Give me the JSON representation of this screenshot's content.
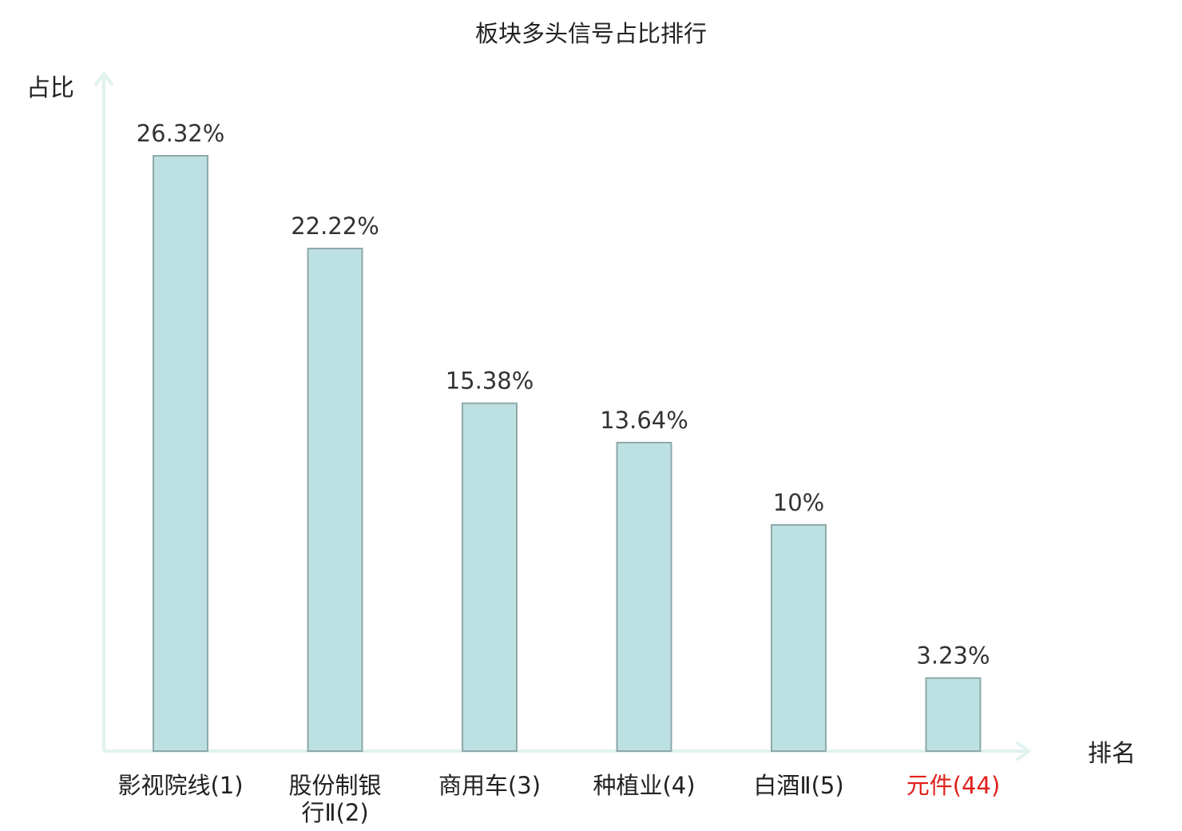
{
  "chart_data": {
    "type": "bar",
    "title": "板块多头信号占比排行",
    "ylabel": "占比",
    "xlabel": "排名",
    "ylim": [
      0,
      30
    ],
    "grid": false,
    "categories": [
      [
        "影视院线(1)"
      ],
      [
        "股份制银",
        "行Ⅱ(2)"
      ],
      [
        "商用车(3)"
      ],
      [
        "种植业(4)"
      ],
      [
        "白酒Ⅱ(5)"
      ],
      [
        "元件(44)"
      ]
    ],
    "values": [
      26.32,
      22.22,
      15.38,
      13.64,
      10,
      3.23
    ],
    "value_labels": [
      "26.32%",
      "22.22%",
      "15.38%",
      "13.64%",
      "10%",
      "3.23%"
    ],
    "highlight_index": 5,
    "colors": {
      "bar_fill": "#bde0e3",
      "bar_stroke": "#8fa9a9",
      "axis": "#e0f2ef",
      "text": "#222222",
      "value_text": "#333333",
      "highlight": "#e0201b"
    }
  }
}
